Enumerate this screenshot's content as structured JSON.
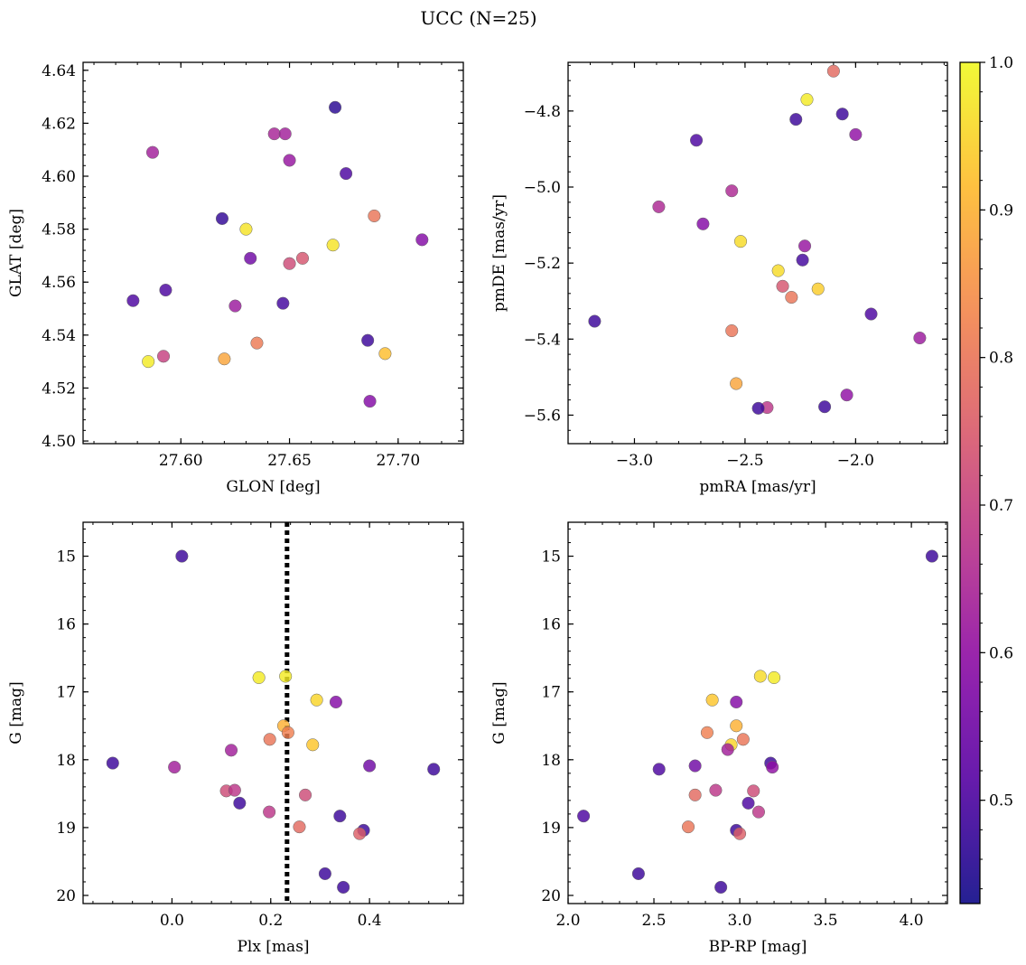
{
  "figure": {
    "title": "UCC (N=25)"
  },
  "colorbar": {
    "colormap": "plasma",
    "vmin": 0.43,
    "vmax": 1.0,
    "ticks": [
      0.5,
      0.6,
      0.7,
      0.8,
      0.9,
      1.0
    ],
    "tick_labels": [
      "0.5",
      "0.6",
      "0.7",
      "0.8",
      "0.9",
      "1.0"
    ]
  },
  "chart_data": [
    {
      "type": "scatter",
      "id": "glon-glat",
      "xlabel": "GLON [deg]",
      "ylabel": "GLAT [deg]",
      "xlim": [
        27.555,
        27.73
      ],
      "ylim": [
        4.499,
        4.643
      ],
      "yinvert": false,
      "xticks": [
        27.6,
        27.65,
        27.7
      ],
      "xtick_labels": [
        "27.60",
        "27.65",
        "27.70"
      ],
      "yticks": [
        4.5,
        4.52,
        4.54,
        4.56,
        4.58,
        4.6,
        4.62,
        4.64
      ],
      "ytick_labels": [
        "4.50",
        "4.52",
        "4.54",
        "4.56",
        "4.58",
        "4.60",
        "4.62",
        "4.64"
      ],
      "x": [
        27.671,
        27.587,
        27.643,
        27.648,
        27.65,
        27.676,
        27.619,
        27.63,
        27.689,
        27.67,
        27.711,
        27.656,
        27.632,
        27.65,
        27.593,
        27.578,
        27.625,
        27.647,
        27.686,
        27.635,
        27.694,
        27.592,
        27.62,
        27.585,
        27.687
      ],
      "y": [
        4.626,
        4.609,
        4.616,
        4.616,
        4.606,
        4.601,
        4.584,
        4.58,
        4.585,
        4.574,
        4.576,
        4.569,
        4.569,
        4.567,
        4.557,
        4.553,
        4.551,
        4.552,
        4.538,
        4.537,
        4.533,
        4.532,
        4.531,
        4.53,
        4.515
      ],
      "c": [
        0.46,
        0.63,
        0.64,
        0.63,
        0.61,
        0.5,
        0.47,
        0.97,
        0.8,
        0.97,
        0.58,
        0.74,
        0.55,
        0.72,
        0.5,
        0.5,
        0.62,
        0.49,
        0.48,
        0.81,
        0.92,
        0.7,
        0.88,
        0.98,
        0.58
      ]
    },
    {
      "type": "scatter",
      "id": "pm",
      "xlabel": "pmRA [mas/yr]",
      "ylabel": "pmDE [mas/yr]",
      "xlim": [
        -3.3,
        -1.585
      ],
      "ylim": [
        -5.675,
        -4.672
      ],
      "yinvert": false,
      "xticks": [
        -3.0,
        -2.5,
        -2.0
      ],
      "xtick_labels": [
        "−3.0",
        "−2.5",
        "−2.0"
      ],
      "yticks": [
        -5.6,
        -5.4,
        -5.2,
        -5.0,
        -4.8
      ],
      "ytick_labels": [
        "−5.6",
        "−5.4",
        "−5.2",
        "−5.0",
        "−4.8"
      ],
      "x": [
        -2.1,
        -2.22,
        -2.06,
        -2.27,
        -2.0,
        -2.72,
        -2.56,
        -2.89,
        -2.69,
        -2.52,
        -2.23,
        -2.24,
        -2.35,
        -2.33,
        -2.17,
        -2.29,
        -3.18,
        -1.93,
        -2.56,
        -1.71,
        -2.54,
        -2.4,
        -2.44,
        -2.14,
        -2.04
      ],
      "y": [
        -4.695,
        -4.77,
        -4.808,
        -4.822,
        -4.862,
        -4.877,
        -5.01,
        -5.052,
        -5.097,
        -5.143,
        -5.155,
        -5.192,
        -5.22,
        -5.261,
        -5.268,
        -5.29,
        -5.353,
        -5.334,
        -5.378,
        -5.397,
        -5.517,
        -5.58,
        -5.582,
        -5.578,
        -5.547
      ],
      "c": [
        0.78,
        0.98,
        0.48,
        0.48,
        0.6,
        0.5,
        0.65,
        0.65,
        0.58,
        0.96,
        0.61,
        0.49,
        0.96,
        0.74,
        0.94,
        0.8,
        0.48,
        0.5,
        0.8,
        0.62,
        0.88,
        0.68,
        0.48,
        0.48,
        0.6
      ]
    },
    {
      "type": "scatter",
      "id": "plx-g",
      "xlabel": "Plx [mas]",
      "ylabel": "G [mag]",
      "xlim": [
        -0.18,
        0.59
      ],
      "ylim": [
        14.5,
        20.12
      ],
      "yinvert": true,
      "xticks": [
        0.0,
        0.2,
        0.4
      ],
      "xtick_labels": [
        "0.0",
        "0.2",
        "0.4"
      ],
      "yticks": [
        15,
        16,
        17,
        18,
        19,
        20
      ],
      "ytick_labels": [
        "15",
        "16",
        "17",
        "18",
        "19",
        "20"
      ],
      "vline": 0.233,
      "x": [
        0.02,
        0.176,
        0.23,
        0.293,
        0.332,
        0.226,
        0.235,
        0.198,
        0.285,
        0.12,
        -0.12,
        0.005,
        0.4,
        0.53,
        0.11,
        0.127,
        0.27,
        0.137,
        0.197,
        0.258,
        0.34,
        0.388,
        0.38,
        0.31,
        0.347
      ],
      "y": [
        15.0,
        16.79,
        16.77,
        17.12,
        17.15,
        17.5,
        17.6,
        17.7,
        17.78,
        17.86,
        18.05,
        18.11,
        18.09,
        18.14,
        18.46,
        18.45,
        18.52,
        18.64,
        18.77,
        18.99,
        18.83,
        19.04,
        19.09,
        19.68,
        19.88
      ],
      "c": [
        0.48,
        0.98,
        0.98,
        0.95,
        0.58,
        0.9,
        0.82,
        0.8,
        0.93,
        0.63,
        0.48,
        0.63,
        0.55,
        0.48,
        0.72,
        0.68,
        0.72,
        0.48,
        0.68,
        0.78,
        0.48,
        0.48,
        0.76,
        0.48,
        0.48
      ]
    },
    {
      "type": "scatter",
      "id": "color-g",
      "xlabel": "BP-RP [mag]",
      "ylabel": "G [mag]",
      "xlim": [
        2.0,
        4.21
      ],
      "ylim": [
        14.5,
        20.12
      ],
      "yinvert": true,
      "xticks": [
        2.0,
        2.5,
        3.0,
        3.5,
        4.0
      ],
      "xtick_labels": [
        "2.0",
        "2.5",
        "3.0",
        "3.5",
        "4.0"
      ],
      "yticks": [
        15,
        16,
        17,
        18,
        19,
        20
      ],
      "ytick_labels": [
        "15",
        "16",
        "17",
        "18",
        "19",
        "20"
      ],
      "x": [
        4.12,
        3.12,
        3.2,
        2.84,
        2.98,
        2.98,
        2.81,
        3.02,
        2.95,
        2.93,
        3.18,
        2.74,
        3.19,
        2.53,
        3.08,
        2.86,
        2.74,
        3.05,
        3.11,
        2.7,
        2.09,
        2.98,
        3.0,
        2.41,
        2.89
      ],
      "y": [
        15.0,
        16.77,
        16.79,
        17.12,
        17.15,
        17.5,
        17.6,
        17.7,
        17.78,
        17.85,
        18.05,
        18.09,
        18.11,
        18.14,
        18.46,
        18.45,
        18.52,
        18.64,
        18.77,
        18.99,
        18.83,
        19.04,
        19.09,
        19.68,
        19.88
      ],
      "c": [
        0.48,
        0.96,
        0.98,
        0.93,
        0.58,
        0.9,
        0.82,
        0.8,
        0.95,
        0.63,
        0.48,
        0.55,
        0.6,
        0.5,
        0.72,
        0.68,
        0.78,
        0.5,
        0.68,
        0.8,
        0.5,
        0.48,
        0.76,
        0.48,
        0.48
      ]
    }
  ]
}
